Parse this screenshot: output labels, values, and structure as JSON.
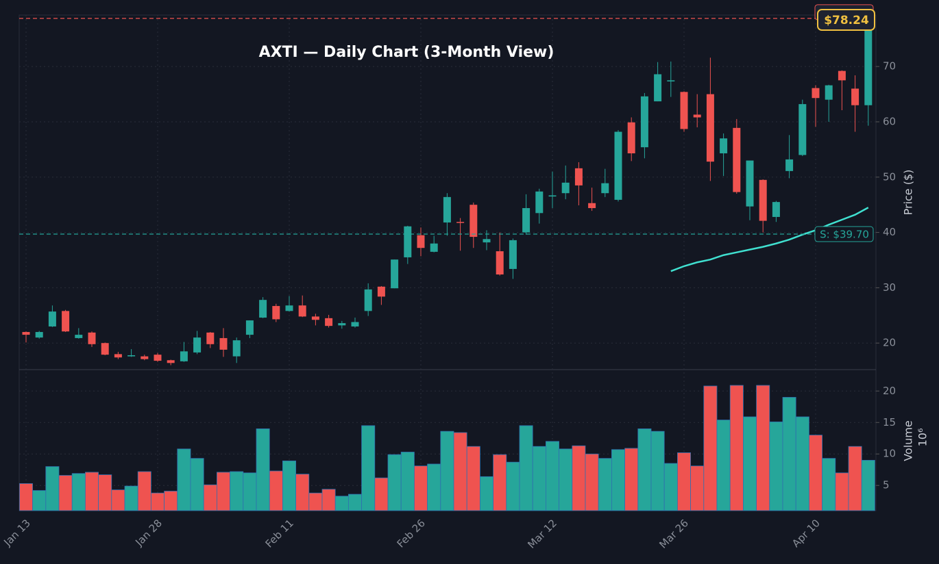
{
  "chart_data": [
    {
      "type": "candlestick",
      "title": "AXTI — Daily Chart (3-Month View)",
      "y_label": "Price ($)",
      "up_color": "#26a69a",
      "down_color": "#ef5350",
      "grid": true,
      "categories": [
        "Jan 13",
        null,
        null,
        null,
        null,
        null,
        null,
        null,
        null,
        null,
        "Jan 28",
        null,
        null,
        null,
        null,
        null,
        null,
        null,
        null,
        null,
        "Feb 11",
        null,
        null,
        null,
        null,
        null,
        null,
        null,
        null,
        null,
        "Feb 26",
        null,
        null,
        null,
        null,
        null,
        null,
        null,
        null,
        null,
        "Mar 12",
        null,
        null,
        null,
        null,
        null,
        null,
        null,
        null,
        null,
        "Mar 26",
        null,
        null,
        null,
        null,
        null,
        null,
        null,
        null,
        null,
        "Apr 10",
        null,
        null,
        null,
        null
      ],
      "open": [
        22.0,
        21.0,
        23.0,
        25.8,
        20.9,
        21.9,
        20.0,
        18.0,
        17.6,
        17.6,
        17.9,
        16.9,
        16.7,
        18.3,
        21.9,
        20.9,
        17.6,
        21.5,
        24.6,
        26.7,
        25.8,
        26.8,
        24.8,
        24.5,
        23.2,
        23.0,
        25.8,
        30.2,
        29.9,
        35.5,
        39.5,
        36.5,
        41.8,
        41.9,
        45.0,
        38.2,
        36.6,
        33.4,
        40.0,
        43.5,
        46.5,
        47.1,
        51.6,
        45.3,
        47.1,
        45.9,
        59.9,
        55.4,
        63.7,
        67.3,
        65.4,
        61.3,
        65.0,
        54.3,
        58.9,
        44.7,
        49.5,
        42.8,
        51.1,
        54.0,
        66.1,
        64.0,
        69.2,
        66.0,
        63.0
      ],
      "high": [
        22.1,
        22.2,
        26.8,
        26.0,
        22.7,
        22.1,
        20.1,
        18.4,
        18.9,
        17.9,
        18.2,
        17.0,
        20.2,
        22.2,
        22.0,
        22.7,
        21.0,
        24.1,
        28.3,
        27.1,
        28.5,
        28.6,
        25.3,
        25.1,
        24.0,
        24.6,
        30.8,
        30.3,
        35.1,
        41.2,
        40.9,
        39.4,
        47.1,
        42.6,
        45.4,
        40.4,
        40.0,
        38.9,
        46.9,
        47.9,
        51.0,
        52.1,
        52.7,
        48.1,
        51.5,
        58.5,
        60.8,
        65.2,
        70.8,
        70.9,
        65.5,
        65.0,
        71.6,
        57.9,
        60.5,
        53.0,
        49.6,
        45.7,
        57.6,
        64.0,
        66.6,
        66.7,
        69.3,
        68.4,
        78.4
      ],
      "low": [
        20.1,
        20.8,
        22.9,
        22.0,
        20.8,
        19.3,
        17.8,
        17.1,
        17.5,
        16.9,
        16.6,
        16.0,
        16.6,
        18.0,
        19.1,
        17.5,
        16.4,
        20.9,
        24.5,
        23.8,
        25.7,
        24.7,
        23.2,
        22.8,
        22.6,
        22.8,
        24.9,
        26.9,
        29.9,
        34.3,
        35.7,
        36.4,
        39.4,
        36.7,
        37.2,
        36.8,
        32.2,
        31.6,
        39.6,
        41.6,
        44.4,
        46.0,
        44.9,
        43.9,
        46.4,
        45.6,
        52.9,
        53.4,
        63.7,
        64.5,
        58.2,
        59.0,
        49.3,
        50.2,
        47.0,
        42.2,
        40.0,
        41.9,
        49.8,
        53.8,
        59.1,
        60.0,
        62.1,
        58.2,
        59.3
      ],
      "close": [
        21.5,
        22.0,
        25.7,
        22.1,
        21.5,
        19.8,
        17.9,
        17.4,
        17.8,
        17.1,
        16.8,
        16.4,
        18.5,
        21.0,
        19.8,
        18.8,
        20.5,
        24.1,
        27.8,
        24.3,
        26.8,
        24.8,
        24.2,
        23.1,
        23.6,
        23.8,
        29.7,
        28.4,
        35.1,
        41.1,
        37.2,
        38.0,
        46.4,
        41.8,
        39.2,
        38.8,
        32.4,
        38.6,
        44.4,
        47.4,
        46.7,
        49.0,
        48.5,
        44.4,
        48.9,
        58.2,
        54.3,
        64.6,
        68.6,
        67.5,
        58.7,
        60.8,
        52.8,
        57.0,
        47.3,
        53.0,
        42.1,
        45.5,
        53.2,
        63.2,
        64.3,
        66.6,
        67.5,
        63.0,
        78.24
      ],
      "moving_average": {
        "color": "#40e0d0",
        "values": [
          null,
          null,
          null,
          null,
          null,
          null,
          null,
          null,
          null,
          null,
          null,
          null,
          null,
          null,
          null,
          null,
          null,
          null,
          null,
          null,
          null,
          null,
          null,
          null,
          null,
          null,
          null,
          null,
          null,
          null,
          null,
          null,
          null,
          null,
          null,
          null,
          null,
          null,
          null,
          null,
          null,
          null,
          null,
          null,
          null,
          null,
          null,
          null,
          null,
          33.0,
          33.9,
          34.6,
          35.1,
          35.9,
          36.4,
          36.9,
          37.4,
          38.0,
          38.7,
          39.6,
          40.4,
          41.4,
          42.3,
          43.2,
          44.5
        ]
      },
      "resistance": {
        "value": 78.7,
        "color": "#ef5350"
      },
      "support": {
        "value": 39.7,
        "label": "S: $39.70",
        "color": "#26a69a"
      },
      "last_price": {
        "value": 78.24,
        "label": "$78.24",
        "color": "#f0c040"
      },
      "ylim": [
        15.2,
        79.3
      ],
      "yticks": [
        20,
        30,
        40,
        50,
        60,
        70
      ]
    },
    {
      "type": "bar",
      "y_label": "Volume",
      "offset_text": "10⁶",
      "grid": true,
      "values": [
        5.3,
        4.2,
        8.0,
        6.6,
        6.9,
        7.1,
        6.7,
        4.3,
        4.9,
        7.2,
        3.8,
        4.1,
        10.8,
        9.3,
        5.1,
        7.1,
        7.2,
        7.0,
        14.0,
        7.3,
        8.9,
        6.8,
        3.8,
        4.4,
        3.3,
        3.6,
        14.5,
        6.2,
        9.9,
        10.3,
        8.1,
        8.4,
        13.6,
        13.4,
        11.2,
        6.4,
        9.9,
        8.7,
        14.5,
        11.2,
        12.0,
        10.8,
        11.3,
        10.0,
        9.3,
        10.7,
        10.9,
        14.0,
        13.6,
        8.5,
        10.2,
        8.1,
        20.8,
        15.4,
        20.9,
        15.9,
        20.9,
        15.1,
        19.0,
        15.9,
        13.0,
        9.3,
        7.0,
        11.2,
        9.0
      ],
      "ylim": [
        1,
        23.4
      ],
      "yticks": [
        5,
        10,
        15,
        20
      ]
    }
  ]
}
